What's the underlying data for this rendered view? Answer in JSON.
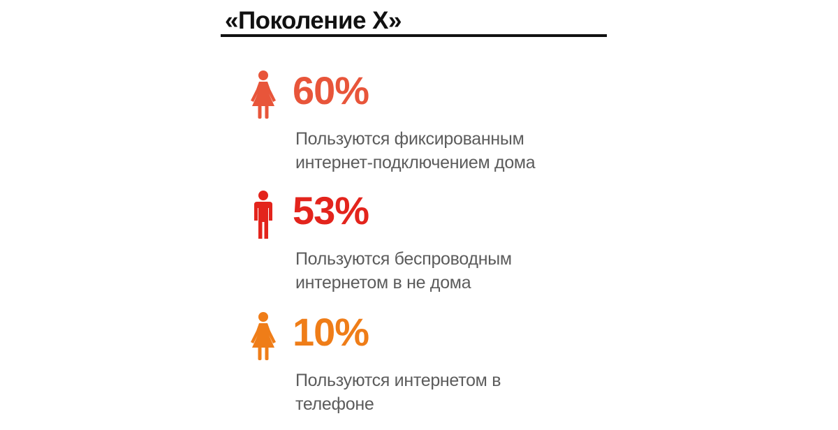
{
  "title": "«Поколение Х»",
  "colors": {
    "title": "#111111",
    "rule": "#111111",
    "description": "#5c5c5c"
  },
  "stats": [
    {
      "value": "60%",
      "value_number": 60,
      "line1": "Пользуются фиксированным",
      "line2": "интернет-подключением дома",
      "icon": "woman-icon",
      "color": "#e8553a"
    },
    {
      "value": "53%",
      "value_number": 53,
      "line1": "Пользуются беспроводным",
      "line2": "интернетом в не дома",
      "icon": "man-icon",
      "color": "#e3241c"
    },
    {
      "value": "10%",
      "value_number": 10,
      "line1": "Пользуются интернетом в",
      "line2": "телефоне",
      "icon": "woman-icon",
      "color": "#ef7d18"
    }
  ]
}
